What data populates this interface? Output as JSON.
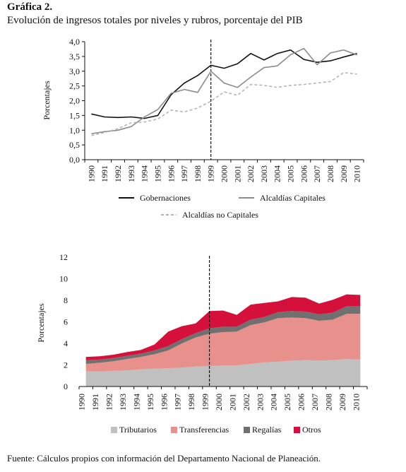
{
  "header": {
    "label": "Gráfica 2.",
    "title": "Evolución de ingresos totales por niveles y rubros, porcentaje del PIB"
  },
  "source": "Fuente: Cálculos propios con información del Departamento Nacional de Planeación.",
  "chart_data": [
    {
      "type": "line",
      "title": "",
      "xlabel": "",
      "ylabel": "Porcentajes",
      "x": [
        "1990",
        "1991",
        "1992",
        "1993",
        "1994",
        "1995",
        "1996",
        "1997",
        "1998",
        "1999",
        "2000",
        "2001",
        "2002",
        "2003",
        "2004",
        "2005",
        "2006",
        "2007",
        "2008",
        "2009",
        "2010"
      ],
      "ylim": [
        0,
        4.0
      ],
      "yticks": [
        "0,0",
        "0,5",
        "1,0",
        "1,5",
        "2,0",
        "2,5",
        "3,0",
        "3,5",
        "4,0"
      ],
      "grid": false,
      "marker_year": "1999",
      "legend_position": "bottom",
      "series": [
        {
          "name": "Gobernaciones",
          "color": "#111111",
          "dash": "solid",
          "values": [
            1.55,
            1.45,
            1.43,
            1.45,
            1.4,
            1.5,
            2.2,
            2.6,
            2.85,
            3.2,
            3.1,
            3.25,
            3.6,
            3.38,
            3.6,
            3.72,
            3.4,
            3.3,
            3.35,
            3.48,
            3.6
          ]
        },
        {
          "name": "Alcaldías Capitales",
          "color": "#8c8c8c",
          "dash": "solid",
          "values": [
            0.88,
            0.95,
            1.0,
            1.12,
            1.45,
            1.7,
            2.25,
            2.38,
            2.28,
            3.0,
            2.6,
            2.45,
            2.8,
            3.12,
            3.18,
            3.56,
            3.77,
            3.22,
            3.62,
            3.72,
            3.55
          ]
        },
        {
          "name": "Alcaldías no Capitales",
          "color": "#b5b5b5",
          "dash": "dashed",
          "values": [
            0.82,
            0.92,
            1.05,
            1.25,
            1.28,
            1.38,
            1.68,
            1.62,
            1.75,
            1.98,
            2.3,
            2.18,
            2.55,
            2.52,
            2.45,
            2.52,
            2.55,
            2.6,
            2.65,
            2.95,
            2.9
          ]
        }
      ]
    },
    {
      "type": "area",
      "stacked": true,
      "title": "",
      "xlabel": "",
      "ylabel": "Porcentajes",
      "x": [
        "1990",
        "1991",
        "1992",
        "1993",
        "1994",
        "1995",
        "1996",
        "1997",
        "1998",
        "1999",
        "2000",
        "2001",
        "2002",
        "2003",
        "2004",
        "2005",
        "2006",
        "2007",
        "2008",
        "2009",
        "2010"
      ],
      "ylim": [
        0,
        12
      ],
      "yticks": [
        "0",
        "2",
        "4",
        "6",
        "8",
        "10",
        "12"
      ],
      "grid": false,
      "marker_year": "1999",
      "legend_position": "bottom",
      "series": [
        {
          "name": "Tributarios",
          "color": "#c0c0c0",
          "values": [
            1.4,
            1.4,
            1.45,
            1.5,
            1.6,
            1.65,
            1.7,
            1.75,
            1.85,
            1.9,
            1.95,
            1.95,
            2.1,
            2.25,
            2.3,
            2.4,
            2.45,
            2.4,
            2.45,
            2.55,
            2.5
          ]
        },
        {
          "name": "Transferencias",
          "color": "#e8908b",
          "values": [
            0.7,
            0.8,
            0.9,
            1.05,
            1.15,
            1.35,
            1.65,
            2.25,
            2.7,
            3.0,
            3.1,
            3.15,
            3.6,
            3.7,
            4.05,
            4.0,
            3.9,
            3.7,
            3.75,
            4.2,
            4.25
          ]
        },
        {
          "name": "Regalías",
          "color": "#707070",
          "values": [
            0.35,
            0.3,
            0.3,
            0.3,
            0.3,
            0.35,
            0.4,
            0.4,
            0.4,
            0.5,
            0.5,
            0.45,
            0.5,
            0.5,
            0.55,
            0.6,
            0.6,
            0.6,
            0.65,
            0.7,
            0.7
          ]
        },
        {
          "name": "Otros",
          "color": "#d4103b",
          "values": [
            0.3,
            0.3,
            0.3,
            0.35,
            0.35,
            0.55,
            1.35,
            1.2,
            0.9,
            1.6,
            1.5,
            1.1,
            1.4,
            1.3,
            1.0,
            1.3,
            1.3,
            1.0,
            1.2,
            1.1,
            1.05
          ]
        }
      ]
    }
  ]
}
